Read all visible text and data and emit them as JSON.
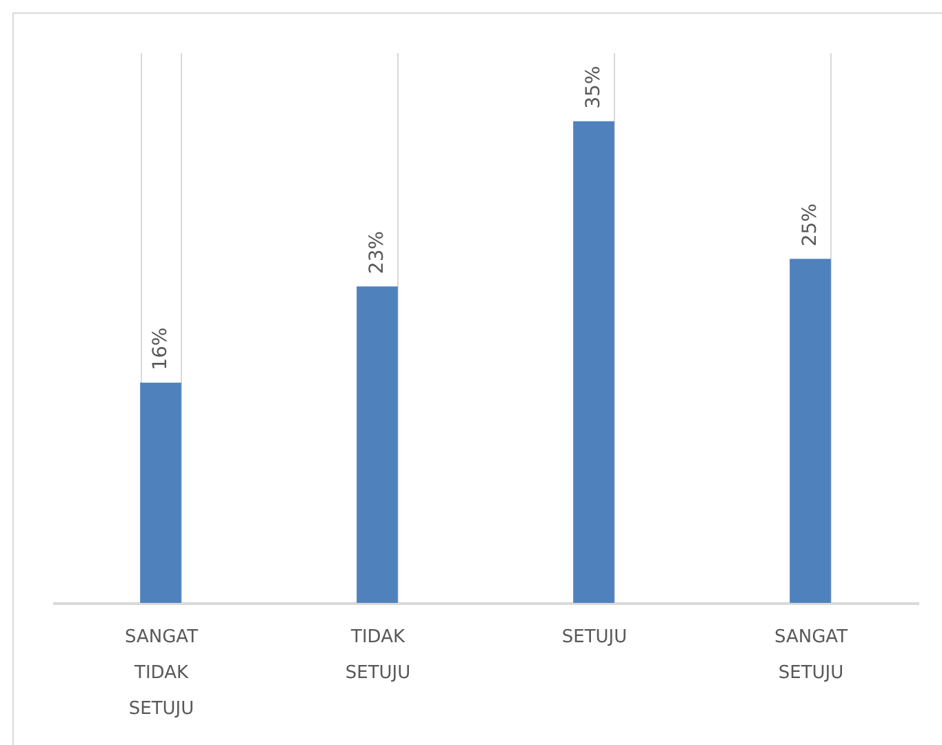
{
  "chart_data": {
    "type": "bar",
    "categories": [
      "SANGAT TIDAK SETUJU",
      "TIDAK SETUJU",
      "SETUJU",
      "SANGAT SETUJU"
    ],
    "values": [
      16,
      23,
      35,
      25
    ],
    "value_labels": [
      "16%",
      "23%",
      "35%",
      "25%"
    ],
    "color": "#4f81bd",
    "grid": "x"
  }
}
